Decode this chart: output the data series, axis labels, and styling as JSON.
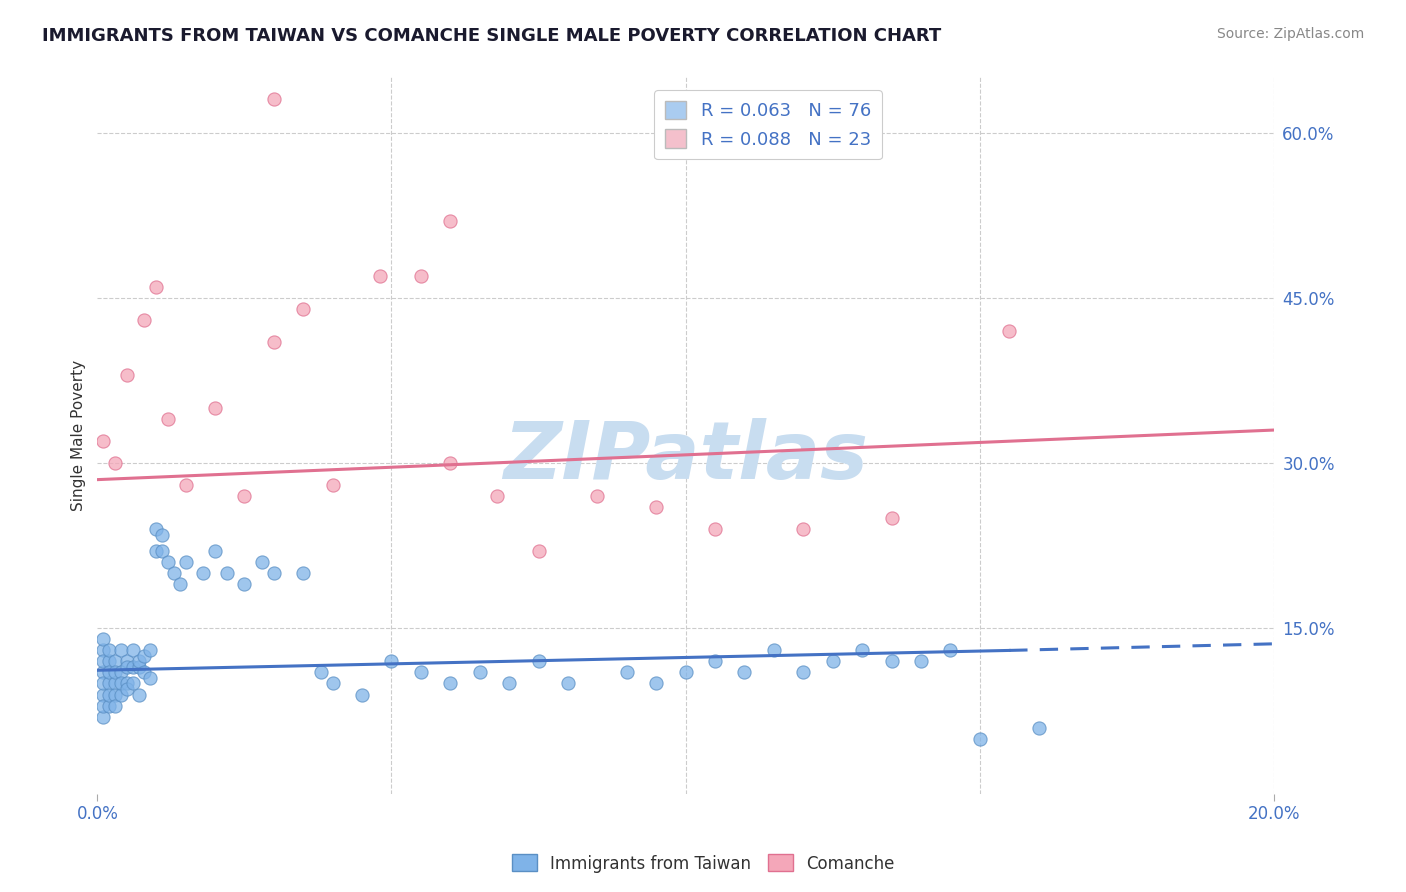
{
  "title": "IMMIGRANTS FROM TAIWAN VS COMANCHE SINGLE MALE POVERTY CORRELATION CHART",
  "source": "Source: ZipAtlas.com",
  "ylabel": "Single Male Poverty",
  "xlim": [
    0.0,
    0.2
  ],
  "ylim": [
    0.0,
    0.65
  ],
  "xtick_vals": [
    0.0,
    0.2
  ],
  "xtick_labels": [
    "0.0%",
    "20.0%"
  ],
  "ytick_positions": [
    0.15,
    0.3,
    0.45,
    0.6
  ],
  "ytick_labels": [
    "15.0%",
    "30.0%",
    "45.0%",
    "60.0%"
  ],
  "background_color": "#ffffff",
  "grid_color": "#cccccc",
  "taiwan_color": "#7fb3e8",
  "comanche_color": "#f4a7b9",
  "taiwan_edge": "#5a8fc4",
  "comanche_edge": "#e07090",
  "taiwan_R": "0.063",
  "taiwan_N": "76",
  "comanche_R": "0.088",
  "comanche_N": "23",
  "legend_taiwan_color": "#aaccf0",
  "legend_comanche_color": "#f4c0cc",
  "taiwan_trend": [
    0.0,
    0.112,
    0.155,
    0.13
  ],
  "taiwan_trend_dashed": [
    0.155,
    0.13,
    0.2,
    0.136
  ],
  "comanche_trend": [
    0.0,
    0.285,
    0.2,
    0.33
  ],
  "taiwan_scatter_x": [
    0.001,
    0.001,
    0.001,
    0.001,
    0.001,
    0.001,
    0.001,
    0.001,
    0.002,
    0.002,
    0.002,
    0.002,
    0.002,
    0.002,
    0.003,
    0.003,
    0.003,
    0.003,
    0.003,
    0.004,
    0.004,
    0.004,
    0.004,
    0.005,
    0.005,
    0.005,
    0.005,
    0.006,
    0.006,
    0.006,
    0.007,
    0.007,
    0.007,
    0.008,
    0.008,
    0.009,
    0.009,
    0.01,
    0.01,
    0.011,
    0.011,
    0.012,
    0.013,
    0.014,
    0.015,
    0.018,
    0.02,
    0.022,
    0.025,
    0.028,
    0.03,
    0.035,
    0.038,
    0.04,
    0.045,
    0.05,
    0.055,
    0.06,
    0.065,
    0.07,
    0.075,
    0.08,
    0.09,
    0.095,
    0.1,
    0.105,
    0.11,
    0.115,
    0.12,
    0.125,
    0.13,
    0.135,
    0.14,
    0.145,
    0.15,
    0.16
  ],
  "taiwan_scatter_y": [
    0.13,
    0.11,
    0.09,
    0.12,
    0.07,
    0.1,
    0.08,
    0.14,
    0.1,
    0.08,
    0.12,
    0.09,
    0.11,
    0.13,
    0.1,
    0.09,
    0.12,
    0.11,
    0.08,
    0.11,
    0.09,
    0.13,
    0.1,
    0.12,
    0.1,
    0.095,
    0.115,
    0.115,
    0.1,
    0.13,
    0.09,
    0.115,
    0.12,
    0.125,
    0.11,
    0.105,
    0.13,
    0.22,
    0.24,
    0.235,
    0.22,
    0.21,
    0.2,
    0.19,
    0.21,
    0.2,
    0.22,
    0.2,
    0.19,
    0.21,
    0.2,
    0.2,
    0.11,
    0.1,
    0.09,
    0.12,
    0.11,
    0.1,
    0.11,
    0.1,
    0.12,
    0.1,
    0.11,
    0.1,
    0.11,
    0.12,
    0.11,
    0.13,
    0.11,
    0.12,
    0.13,
    0.12,
    0.12,
    0.13,
    0.05,
    0.06
  ],
  "comanche_scatter_x": [
    0.001,
    0.003,
    0.005,
    0.008,
    0.01,
    0.012,
    0.015,
    0.02,
    0.025,
    0.03,
    0.035,
    0.04,
    0.048,
    0.055,
    0.06,
    0.068,
    0.075,
    0.085,
    0.095,
    0.105,
    0.12,
    0.135,
    0.155
  ],
  "comanche_scatter_y": [
    0.32,
    0.3,
    0.38,
    0.43,
    0.46,
    0.34,
    0.28,
    0.35,
    0.27,
    0.41,
    0.44,
    0.28,
    0.47,
    0.47,
    0.3,
    0.27,
    0.22,
    0.27,
    0.26,
    0.24,
    0.24,
    0.25,
    0.42
  ],
  "comanche_high_x": [
    0.03
  ],
  "comanche_high_y": [
    0.63
  ],
  "comanche_top_x": [
    0.06
  ],
  "comanche_top_y": [
    0.52
  ],
  "watermark": "ZIPatlas",
  "watermark_color": "#c8ddf0",
  "title_color": "#1a1a2e",
  "axis_label_color": "#333333",
  "tick_label_color": "#4472c4"
}
